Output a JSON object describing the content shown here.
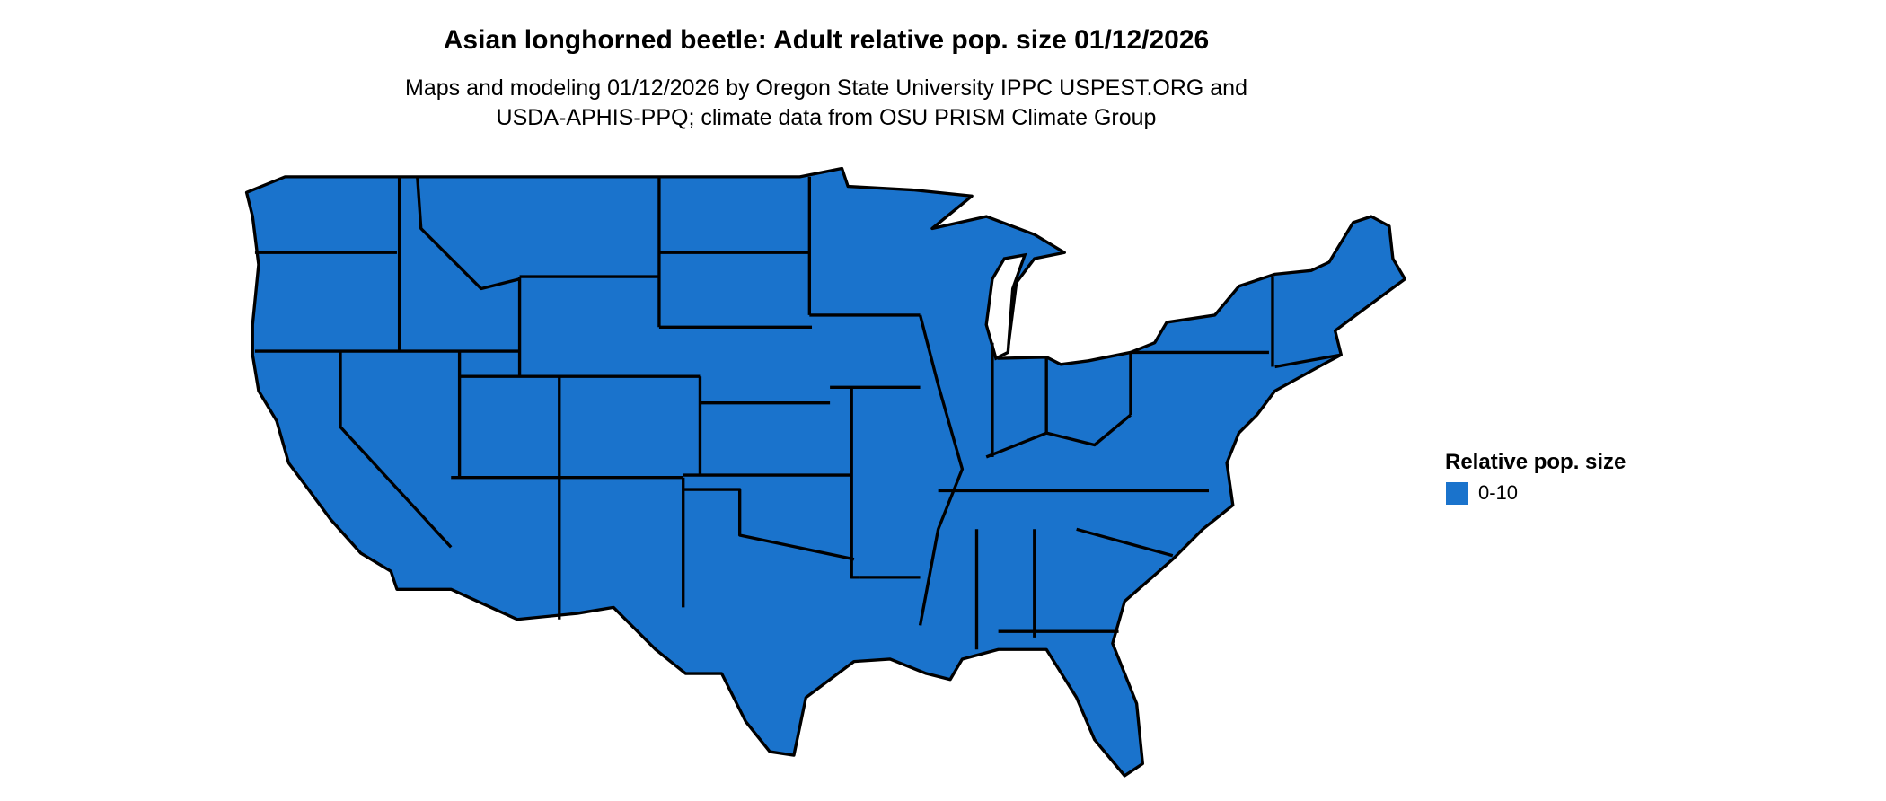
{
  "title": "Asian longhorned beetle: Adult relative pop. size 01/12/2026",
  "subtitle_lines": [
    "Maps and modeling 01/12/2026 by Oregon State University IPPC USPEST.ORG and",
    "USDA-APHIS-PPQ; climate data from OSU PRISM Climate Group"
  ],
  "map": {
    "region": "Contiguous United States",
    "fill_color": "#1a73cc",
    "border_color": "#000000"
  },
  "legend": {
    "title": "Relative pop. size",
    "items": [
      {
        "label": "0-10",
        "color": "#1a73cc"
      }
    ]
  }
}
